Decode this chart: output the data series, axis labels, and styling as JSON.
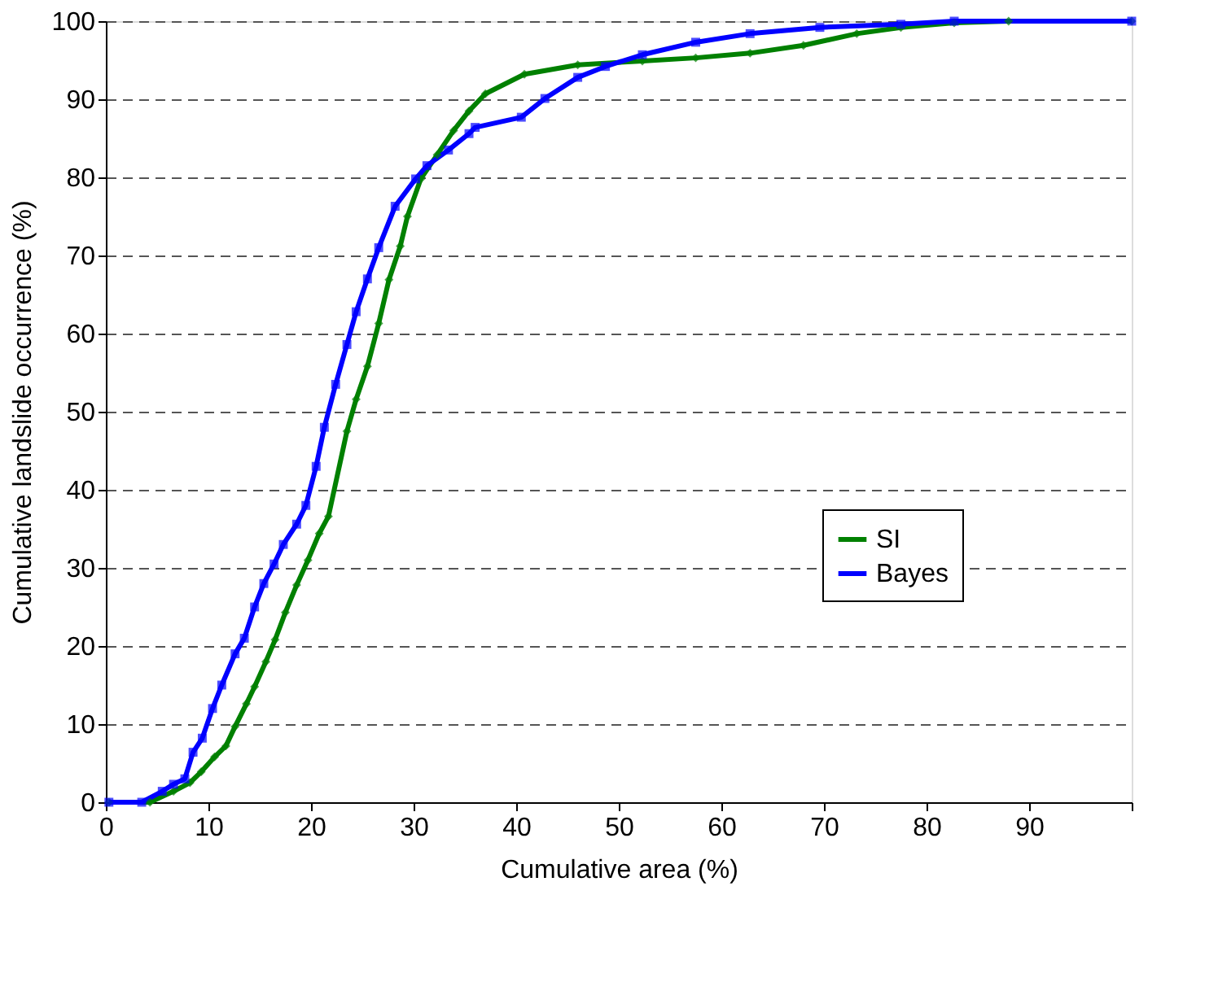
{
  "chart_data": {
    "type": "line",
    "xlabel": "Cumulative area (%)",
    "ylabel": "Cumulative landslide occurrence (%)",
    "xlim": [
      0,
      100
    ],
    "ylim": [
      0,
      100
    ],
    "xticks": [
      0,
      10,
      20,
      30,
      40,
      50,
      60,
      70,
      80,
      90,
      {
        "value": 100,
        "label": null
      }
    ],
    "yticks": [
      0,
      10,
      20,
      30,
      40,
      50,
      60,
      70,
      80,
      90,
      100
    ],
    "grid": "y",
    "legend": "right",
    "line_style": "solid",
    "series": [
      {
        "name": "SI",
        "color": "#008000",
        "marker": "diamond",
        "x": [
          0.3,
          4.3,
          6.6,
          8.2,
          9.3,
          10.6,
          11.7,
          12.6,
          13.7,
          14.5,
          15.6,
          16.5,
          17.5,
          18.6,
          19.7,
          20.8,
          21.7,
          23.5,
          24.4,
          25.5,
          26.6,
          27.6,
          28.7,
          29.4,
          30.7,
          32.3,
          33.9,
          35.4,
          37.0,
          40.8,
          46.0,
          52.3,
          57.5,
          62.8,
          68.0,
          73.2,
          77.5,
          82.7,
          88.0,
          100
        ],
        "values": [
          0,
          0,
          1.4,
          2.5,
          3.9,
          5.8,
          7.2,
          9.7,
          12.6,
          14.8,
          18,
          20.8,
          24.3,
          27.8,
          31,
          34.4,
          36.6,
          47.5,
          51.6,
          55.8,
          61.3,
          66.9,
          71.2,
          75,
          79.8,
          82.9,
          86,
          88.5,
          90.7,
          93.2,
          94.4,
          94.9,
          95.3,
          95.9,
          96.9,
          98.4,
          99.2,
          99.8,
          100,
          100
        ]
      },
      {
        "name": "Bayes",
        "color": "#0000ff",
        "marker": "square",
        "x": [
          0.3,
          3.5,
          5.5,
          6.6,
          7.7,
          8.5,
          9.4,
          10.4,
          11.3,
          12.6,
          13.5,
          14.5,
          15.4,
          16.4,
          17.3,
          18.6,
          19.5,
          20.5,
          21.3,
          22.4,
          23.5,
          24.4,
          25.5,
          26.6,
          28.2,
          30.2,
          31.3,
          33.4,
          35.4,
          36.0,
          40.5,
          42.8,
          46.0,
          48.7,
          52.3,
          57.5,
          62.8,
          69.6,
          77.5,
          82.7,
          100
        ],
        "values": [
          0,
          0,
          1.4,
          2.3,
          3,
          6.4,
          8.2,
          12,
          15,
          19,
          21,
          25,
          28,
          30.5,
          33,
          35.6,
          38,
          43,
          48,
          53.5,
          58.6,
          62.8,
          67,
          71,
          76.3,
          79.8,
          81.5,
          83.5,
          85.6,
          86.4,
          87.7,
          90.1,
          92.8,
          94.2,
          95.7,
          97.3,
          98.4,
          99.2,
          99.6,
          100,
          100
        ]
      }
    ]
  }
}
